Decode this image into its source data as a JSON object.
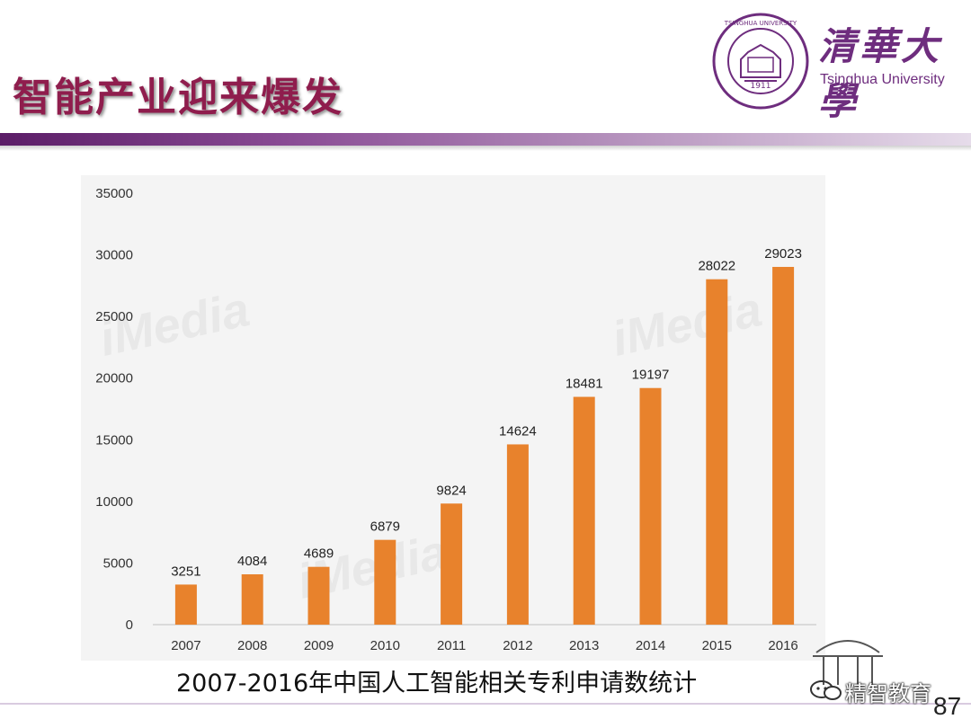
{
  "slide": {
    "title": "智能产业迎来爆发",
    "caption": "2007-2016年中国人工智能相关专利申请数统计",
    "page_number": "87"
  },
  "logo": {
    "name_cn": "清華大學",
    "name_en": "Tsinghua University",
    "seal_year": "1911",
    "seal_ring_text": "TSINGHUA UNIVERSITY"
  },
  "watermarks": {
    "chart_watermark": "iMedia",
    "footer_account": "精智教育"
  },
  "colors": {
    "bar": "#e8822c",
    "brand_purple": "#6e2d7e",
    "title_color": "#8f1d4d"
  },
  "chart_data": {
    "type": "bar",
    "categories": [
      "2007",
      "2008",
      "2009",
      "2010",
      "2011",
      "2012",
      "2013",
      "2014",
      "2015",
      "2016"
    ],
    "values": [
      3251,
      4084,
      4689,
      6879,
      9824,
      14624,
      18481,
      19197,
      28022,
      29023
    ],
    "ylim": [
      0,
      35000
    ],
    "yticks": [
      0,
      5000,
      10000,
      15000,
      20000,
      25000,
      30000,
      35000
    ],
    "grid": false,
    "data_labels": true,
    "title": "",
    "xlabel": "",
    "ylabel": ""
  }
}
